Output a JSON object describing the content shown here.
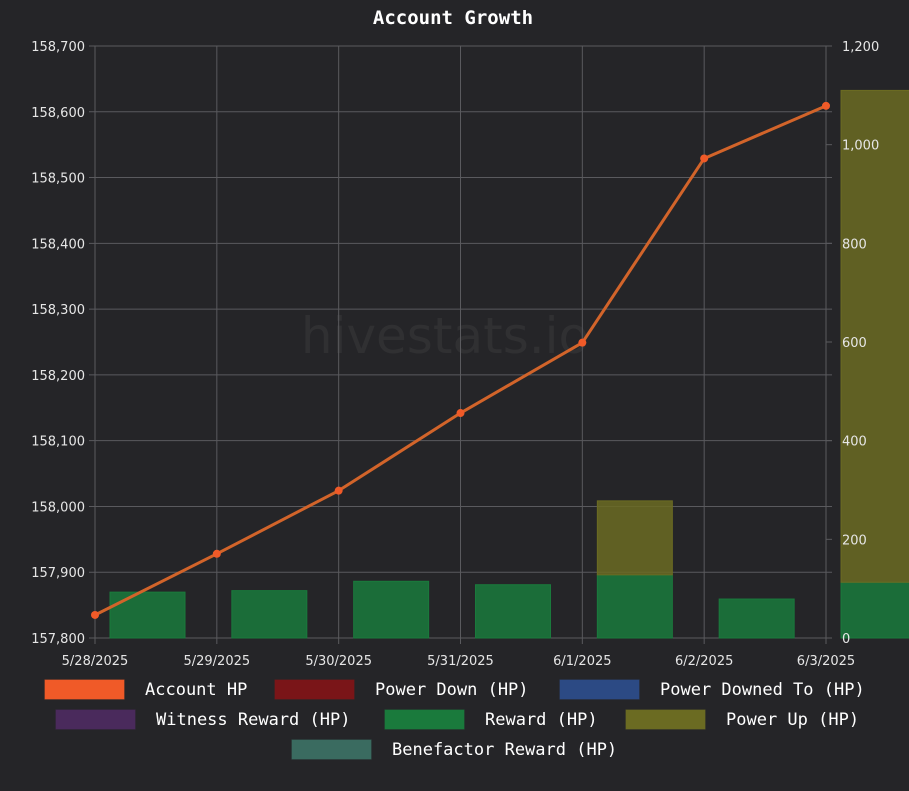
{
  "chart_data": {
    "type": "bar",
    "title": "Account Growth",
    "watermark": "hivestats.io",
    "categories": [
      "5/28/2025",
      "5/29/2025",
      "5/30/2025",
      "5/31/2025",
      "6/1/2025",
      "6/2/2025",
      "6/3/2025"
    ],
    "left_axis": {
      "min": 157800,
      "max": 158700,
      "step": 100,
      "tick_labels": [
        "157,800",
        "157,900",
        "158,000",
        "158,100",
        "158,200",
        "158,300",
        "158,400",
        "158,500",
        "158,600",
        "158,700"
      ]
    },
    "right_axis": {
      "min": 0,
      "max": 1200,
      "step": 200,
      "tick_labels": [
        "0",
        "200",
        "400",
        "600",
        "800",
        "1,000",
        "1,200"
      ]
    },
    "grid": true,
    "legend_position": "bottom",
    "series": [
      {
        "name": "Account HP",
        "type": "line",
        "axis": "left",
        "color": "#f05a28",
        "line_color": "#d2642a",
        "values": [
          157835,
          157928,
          158024,
          158142,
          158249,
          158529,
          158609
        ]
      },
      {
        "name": "Power Down (HP)",
        "type": "bar",
        "axis": "right",
        "color": "#7a1518",
        "values": [
          0,
          0,
          0,
          0,
          0,
          0,
          0
        ]
      },
      {
        "name": "Power Downed To (HP)",
        "type": "bar",
        "axis": "right",
        "color": "#2c4a84",
        "values": [
          0,
          0,
          0,
          0,
          0,
          0,
          0
        ]
      },
      {
        "name": "Witness Reward (HP)",
        "type": "bar",
        "axis": "right",
        "color": "#4a2a5c",
        "values": [
          0,
          0,
          0,
          0,
          0,
          0,
          0
        ]
      },
      {
        "name": "Reward (HP)",
        "type": "bar",
        "axis": "right",
        "color": "#1a7a3c",
        "values": [
          93,
          96,
          115,
          108,
          128,
          79,
          113
        ]
      },
      {
        "name": "Power Up (HP)",
        "type": "bar",
        "axis": "right",
        "color": "#6b6b22",
        "values": [
          0,
          0,
          0,
          0,
          150,
          0,
          997
        ]
      },
      {
        "name": "Benefactor Reward (HP)",
        "type": "bar",
        "axis": "right",
        "color": "#3a6b60",
        "values": [
          0,
          0,
          0,
          0,
          0,
          0,
          0
        ]
      }
    ]
  }
}
